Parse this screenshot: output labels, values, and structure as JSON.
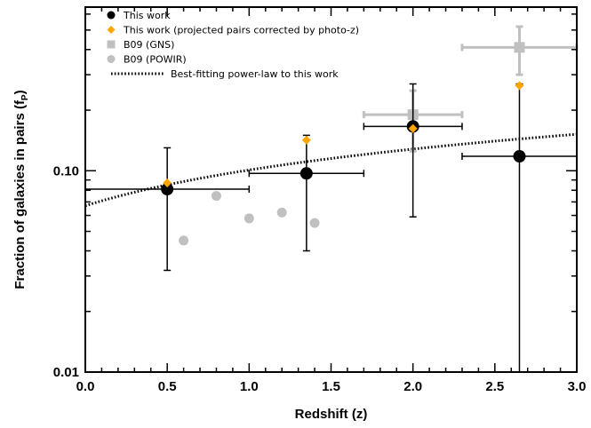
{
  "chart_data": {
    "type": "scatter",
    "xlabel": "Redshift (z)",
    "ylabel": "Fraction of galaxies in pairs (f",
    "ylabel_sub": "P",
    "ylabel_close": ")",
    "xlim": [
      0.0,
      3.0
    ],
    "ylim": [
      0.01,
      0.65
    ],
    "yscale": "log",
    "grid": false,
    "legend_position": "top-left",
    "x_ticks": [
      {
        "value": 0.0,
        "label": "0.0"
      },
      {
        "value": 0.5,
        "label": "0.5"
      },
      {
        "value": 1.0,
        "label": "1.0"
      },
      {
        "value": 1.5,
        "label": "1.5"
      },
      {
        "value": 2.0,
        "label": "2.0"
      },
      {
        "value": 2.5,
        "label": "2.5"
      },
      {
        "value": 3.0,
        "label": "3.0"
      }
    ],
    "y_ticks": [
      {
        "value": 0.01,
        "label": "0.01"
      },
      {
        "value": 0.1,
        "label": "0.10"
      }
    ],
    "series": [
      {
        "name": "This work",
        "marker": "circle",
        "color": "#000000",
        "points": [
          {
            "x": 0.5,
            "y": 0.081,
            "xerr": [
              0.5,
              0.5
            ],
            "yerr_low": 0.032,
            "yerr_high": 0.13
          },
          {
            "x": 1.35,
            "y": 0.097,
            "xerr": [
              0.35,
              0.35
            ],
            "yerr_low": 0.04,
            "yerr_high": 0.15
          },
          {
            "x": 2.0,
            "y": 0.166,
            "xerr": [
              0.3,
              0.3
            ],
            "yerr_low": 0.059,
            "yerr_high": 0.27
          },
          {
            "x": 2.65,
            "y": 0.118,
            "xerr": [
              0.35,
              0.35
            ],
            "yerr_low": 0.01,
            "yerr_high": 0.27
          }
        ]
      },
      {
        "name": "This work (projected pairs corrected by photo-z)",
        "marker": "diamond",
        "color": "#ffa500",
        "points": [
          {
            "x": 0.5,
            "y": 0.087
          },
          {
            "x": 1.35,
            "y": 0.142
          },
          {
            "x": 2.0,
            "y": 0.162
          },
          {
            "x": 2.65,
            "y": 0.265
          }
        ]
      },
      {
        "name": "B09 (GNS)",
        "marker": "square",
        "color": "#c0c0c0",
        "points": [
          {
            "x": 2.0,
            "y": 0.19,
            "xerr": [
              0.3,
              0.3
            ],
            "yerr_low": 0.125,
            "yerr_high": 0.25
          },
          {
            "x": 2.65,
            "y": 0.41,
            "xerr": [
              0.35,
              0.35
            ],
            "yerr_low": 0.3,
            "yerr_high": 0.52
          }
        ]
      },
      {
        "name": "B09 (POWIR)",
        "marker": "circle",
        "color": "#c0c0c0",
        "points": [
          {
            "x": 0.6,
            "y": 0.045
          },
          {
            "x": 0.8,
            "y": 0.075
          },
          {
            "x": 1.0,
            "y": 0.058
          },
          {
            "x": 1.2,
            "y": 0.062
          },
          {
            "x": 1.4,
            "y": 0.055
          }
        ]
      },
      {
        "name": "Best-fitting power-law to this work",
        "type": "line",
        "style": "dotted",
        "color": "#000000",
        "function": {
          "form": "a*(1+z)^m",
          "a": 0.067,
          "m": 0.59
        }
      }
    ]
  }
}
